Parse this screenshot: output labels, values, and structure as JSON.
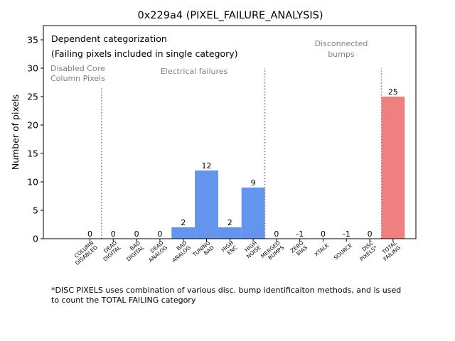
{
  "chart_data": {
    "type": "bar",
    "title": "0x229a4 (PIXEL_FAILURE_ANALYSIS)",
    "xlabel": "",
    "ylabel": "Number of pixels",
    "ylim": [
      0,
      37.5
    ],
    "yticks": [
      0,
      5,
      10,
      15,
      20,
      25,
      30,
      35
    ],
    "grid": false,
    "categories": [
      [
        "COLUMN",
        "DISABLED"
      ],
      [
        "DEAD",
        "DIGITAL"
      ],
      [
        "BAD",
        "DIGITAL"
      ],
      [
        "DEAD",
        "ANALOG"
      ],
      [
        "BAD",
        "ANALOG"
      ],
      [
        "TUNING",
        "BAD"
      ],
      [
        "HIGH",
        "ENC"
      ],
      [
        "HIGH",
        "NOISE"
      ],
      [
        "MERGED",
        "BUMPS"
      ],
      [
        "ZERO",
        "BIAS"
      ],
      [
        "XTALK"
      ],
      [
        "SOURCE"
      ],
      [
        "DISC",
        "PIXELS*"
      ],
      [
        "TOTAL",
        "FAILING"
      ]
    ],
    "values": [
      0,
      0,
      0,
      0,
      2,
      12,
      2,
      9,
      0,
      -1,
      0,
      -1,
      0,
      25
    ],
    "value_labels": [
      "0",
      "0",
      "0",
      "0",
      "2",
      "12",
      "2",
      "9",
      "0",
      "-1",
      "0",
      "-1",
      "0",
      "25"
    ],
    "bar_colors": [
      "#6495ed",
      "#6495ed",
      "#6495ed",
      "#6495ed",
      "#6495ed",
      "#6495ed",
      "#6495ed",
      "#6495ed",
      "#6495ed",
      "#6495ed",
      "#6495ed",
      "#6495ed",
      "#6495ed",
      "#f08080"
    ],
    "separators": [
      {
        "after_index": 0,
        "top_value": 26.8
      },
      {
        "after_index": 7,
        "top_value": 30
      },
      {
        "after_index": 12,
        "top_value": 30
      }
    ],
    "annotations": {
      "header_line1": "Dependent categorization",
      "header_line2": "(Failing pixels included in single category)",
      "group_disabled_line1": "Disabled Core",
      "group_disabled_line2": "Column Pixels",
      "group_electrical": "Electrical failures",
      "group_disconnected_line1": "Disconnected",
      "group_disconnected_line2": "bumps"
    }
  },
  "footnote": {
    "line1": "*DISC PIXELS uses combination of various disc. bump identificaiton methods, and is used",
    "line2": "to count the TOTAL FAILING category"
  }
}
